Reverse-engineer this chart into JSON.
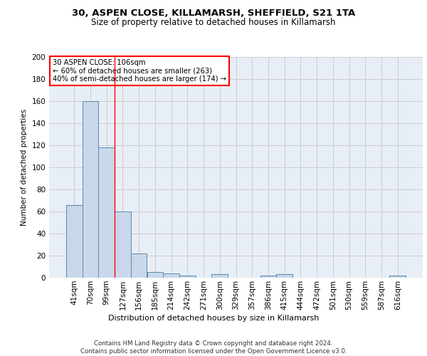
{
  "title": "30, ASPEN CLOSE, KILLAMARSH, SHEFFIELD, S21 1TA",
  "subtitle": "Size of property relative to detached houses in Killamarsh",
  "xlabel": "Distribution of detached houses by size in Killamarsh",
  "ylabel": "Number of detached properties",
  "bar_labels": [
    "41sqm",
    "70sqm",
    "99sqm",
    "127sqm",
    "156sqm",
    "185sqm",
    "214sqm",
    "242sqm",
    "271sqm",
    "300sqm",
    "329sqm",
    "357sqm",
    "386sqm",
    "415sqm",
    "444sqm",
    "472sqm",
    "501sqm",
    "530sqm",
    "559sqm",
    "587sqm",
    "616sqm"
  ],
  "bar_values": [
    66,
    160,
    118,
    60,
    22,
    5,
    4,
    2,
    0,
    3,
    0,
    0,
    2,
    3,
    0,
    0,
    0,
    0,
    0,
    0,
    2
  ],
  "bar_color": "#c8d8ea",
  "bar_edge_color": "#5a8ab0",
  "grid_color": "#cccccc",
  "bg_color": "#e8eef6",
  "annotation_text": "30 ASPEN CLOSE: 106sqm\n← 60% of detached houses are smaller (263)\n40% of semi-detached houses are larger (174) →",
  "annotation_box_color": "white",
  "annotation_box_edge_color": "red",
  "footer_text": "Contains HM Land Registry data © Crown copyright and database right 2024.\nContains public sector information licensed under the Open Government Licence v3.0.",
  "ylim": [
    0,
    200
  ],
  "yticks": [
    0,
    20,
    40,
    60,
    80,
    100,
    120,
    140,
    160,
    180,
    200
  ],
  "red_line_index": 2.5
}
